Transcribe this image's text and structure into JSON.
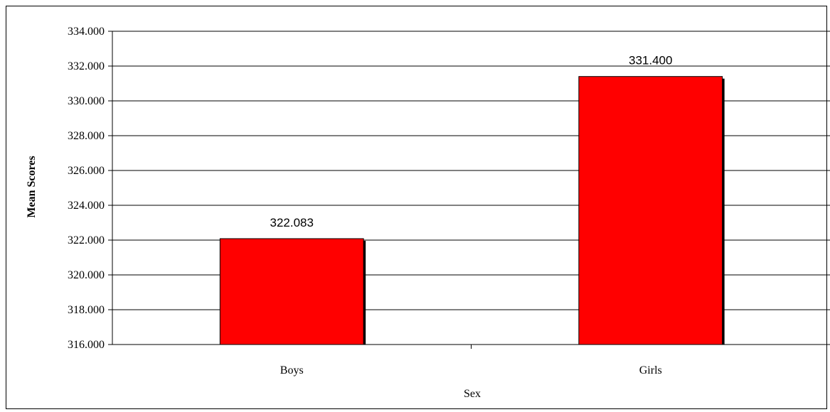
{
  "chart_data": {
    "type": "bar",
    "categories": [
      "Boys",
      "Girls"
    ],
    "values": [
      322.083,
      331.4
    ],
    "data_labels": [
      "322.083",
      "331.400"
    ],
    "title": "",
    "xlabel": "Sex",
    "ylabel": "Mean Scores",
    "ylim": [
      316,
      334
    ],
    "yticks": [
      "316.000",
      "318.000",
      "320.000",
      "322.000",
      "324.000",
      "326.000",
      "328.000",
      "330.000",
      "332.000",
      "334.000"
    ],
    "grid": true,
    "legend": "none",
    "bar_color": "#ff0000",
    "bar_shadow_color": "#000000"
  }
}
